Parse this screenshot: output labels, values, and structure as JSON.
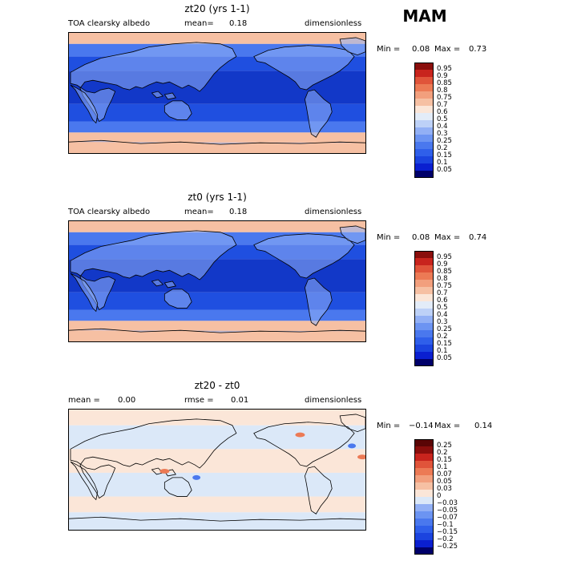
{
  "season_label": "MAM",
  "chart_data": [
    {
      "type": "heatmap",
      "title": "zt20 (yrs 1-1)",
      "variable": "TOA clearsky albedo",
      "stat1_label": "mean=",
      "stat1_value": "0.18",
      "stat2_label": "",
      "stat2_value": "",
      "units": "dimensionless",
      "min_label": "Min =",
      "min_value": "0.08",
      "max_label": "Max =",
      "max_value": "0.73",
      "colorbar_levels": [
        "0.05",
        "0.1",
        "0.15",
        "0.2",
        "0.25",
        "0.3",
        "0.4",
        "0.5",
        "0.6",
        "0.7",
        "0.75",
        "0.8",
        "0.85",
        "0.9",
        "0.95"
      ],
      "colorbar_colors": [
        "#00006a",
        "#0a1fd0",
        "#1b44df",
        "#2f5fea",
        "#4a78ee",
        "#6c94f2",
        "#92b0f5",
        "#bdd1f7",
        "#e3ecf8",
        "#fbe6d8",
        "#f6c0a3",
        "#f29f7d",
        "#ec7a55",
        "#e0543a",
        "#c8241d",
        "#8a0e0c"
      ]
    },
    {
      "type": "heatmap",
      "title": "zt0 (yrs 1-1)",
      "variable": "TOA clearsky albedo",
      "stat1_label": "mean=",
      "stat1_value": "0.18",
      "stat2_label": "",
      "stat2_value": "",
      "units": "dimensionless",
      "min_label": "Min =",
      "min_value": "0.08",
      "max_label": "Max =",
      "max_value": "0.74",
      "colorbar_levels": [
        "0.05",
        "0.1",
        "0.15",
        "0.2",
        "0.25",
        "0.3",
        "0.4",
        "0.5",
        "0.6",
        "0.7",
        "0.75",
        "0.8",
        "0.85",
        "0.9",
        "0.95"
      ],
      "colorbar_colors": [
        "#00006a",
        "#0a1fd0",
        "#1b44df",
        "#2f5fea",
        "#4a78ee",
        "#6c94f2",
        "#92b0f5",
        "#bdd1f7",
        "#e3ecf8",
        "#fbe6d8",
        "#f6c0a3",
        "#f29f7d",
        "#ec7a55",
        "#e0543a",
        "#c8241d",
        "#8a0e0c"
      ]
    },
    {
      "type": "heatmap",
      "title": "zt20 - zt0",
      "variable": "",
      "stat1_label": "mean =",
      "stat1_value": "0.00",
      "stat2_label": "rmse =",
      "stat2_value": "0.01",
      "units": "dimensionless",
      "min_label": "Min =",
      "min_value": "−0.14",
      "max_label": "Max =",
      "max_value": "0.14",
      "colorbar_levels": [
        "−0.25",
        "−0.2",
        "−0.15",
        "−0.1",
        "−0.07",
        "−0.05",
        "−0.03",
        "0",
        "0.03",
        "0.05",
        "0.07",
        "0.1",
        "0.15",
        "0.2",
        "0.25"
      ],
      "colorbar_colors": [
        "#00006a",
        "#0a1fd0",
        "#1b44df",
        "#2f5fea",
        "#4a78ee",
        "#6c94f2",
        "#92b0f5",
        "#dbe8f8",
        "#fbe6d8",
        "#f6c0a3",
        "#f29f7d",
        "#ec7a55",
        "#e0543a",
        "#c8241d",
        "#8a0e0c",
        "#5a0505"
      ]
    }
  ],
  "map_palette": {
    "deep_ocean": "#1238c8",
    "ocean": "#1f4fe0",
    "mid": "#4a78ee",
    "light": "#92b0f5",
    "pale": "#e3ecf8",
    "snow": "#f6c0a3",
    "diff_neg": "#dbe8f8",
    "diff_pos": "#fbe6d8",
    "diff_hot": "#ec7a55",
    "diff_cold": "#4a78ee"
  }
}
